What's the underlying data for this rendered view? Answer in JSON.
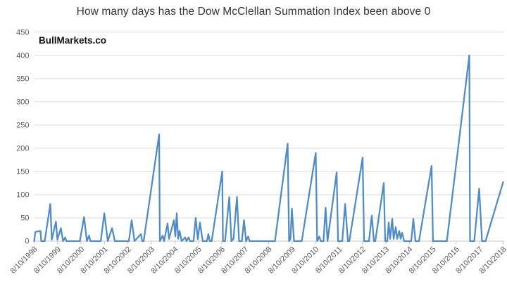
{
  "chart_data": {
    "type": "line",
    "title": "How many days has the Dow McClellan Summation Index been above 0",
    "watermark": "BullMarkets.co",
    "xlabel": "",
    "ylabel": "",
    "ylim": [
      0,
      450
    ],
    "y_ticks": [
      0,
      50,
      100,
      150,
      200,
      250,
      300,
      350,
      400,
      450
    ],
    "x_tick_labels": [
      "8/10/1998",
      "8/10/1999",
      "8/10/2000",
      "8/10/2001",
      "8/10/2002",
      "8/10/2003",
      "8/10/2004",
      "8/10/2005",
      "8/10/2006",
      "8/10/2007",
      "8/10/2008",
      "8/10/2009",
      "8/10/2010",
      "8/10/2011",
      "8/10/2012",
      "8/10/2013",
      "8/10/2014",
      "8/10/2015",
      "8/10/2016",
      "8/10/2017",
      "8/10/2018"
    ],
    "x_range_years_after_start": [
      0,
      20
    ],
    "grid": true,
    "legend": false,
    "colors": {
      "line": "#4e8bc7",
      "grid": "#dadada",
      "axis": "#c8c8c8",
      "tick_label": "#595959",
      "title": "#333333",
      "watermark": "#111111",
      "background": "#ffffff"
    },
    "series": [
      {
        "points": [
          [
            0,
            0
          ],
          [
            0.05,
            20
          ],
          [
            0.27,
            22
          ],
          [
            0.3,
            0
          ],
          [
            0.45,
            0
          ],
          [
            0.69,
            80
          ],
          [
            0.75,
            3
          ],
          [
            0.93,
            42
          ],
          [
            0.99,
            3
          ],
          [
            1.14,
            28
          ],
          [
            1.23,
            0
          ],
          [
            1.32,
            8
          ],
          [
            1.38,
            0
          ],
          [
            1.95,
            0
          ],
          [
            2.13,
            52
          ],
          [
            2.25,
            0
          ],
          [
            2.34,
            12
          ],
          [
            2.4,
            0
          ],
          [
            2.84,
            0
          ],
          [
            2.99,
            60
          ],
          [
            3.14,
            0
          ],
          [
            3.32,
            28
          ],
          [
            3.44,
            0
          ],
          [
            4.04,
            0
          ],
          [
            4.16,
            45
          ],
          [
            4.28,
            0
          ],
          [
            4.55,
            15
          ],
          [
            4.61,
            0
          ],
          [
            4.67,
            0
          ],
          [
            5.33,
            230
          ],
          [
            5.36,
            0
          ],
          [
            5.48,
            12
          ],
          [
            5.54,
            0
          ],
          [
            5.69,
            38
          ],
          [
            5.75,
            5
          ],
          [
            5.96,
            45
          ],
          [
            6.02,
            10
          ],
          [
            6.08,
            60
          ],
          [
            6.14,
            5
          ],
          [
            6.2,
            22
          ],
          [
            6.29,
            0
          ],
          [
            6.44,
            8
          ],
          [
            6.5,
            0
          ],
          [
            6.59,
            8
          ],
          [
            6.65,
            0
          ],
          [
            6.8,
            0
          ],
          [
            6.89,
            50
          ],
          [
            6.98,
            4
          ],
          [
            7.07,
            40
          ],
          [
            7.19,
            0
          ],
          [
            7.37,
            0
          ],
          [
            7.43,
            15
          ],
          [
            7.49,
            0
          ],
          [
            7.57,
            0
          ],
          [
            8.02,
            150
          ],
          [
            8.05,
            0
          ],
          [
            8.14,
            0
          ],
          [
            8.32,
            95
          ],
          [
            8.41,
            0
          ],
          [
            8.5,
            5
          ],
          [
            8.65,
            95
          ],
          [
            8.74,
            0
          ],
          [
            8.86,
            0
          ],
          [
            8.95,
            45
          ],
          [
            9.04,
            0
          ],
          [
            9.13,
            10
          ],
          [
            9.19,
            0
          ],
          [
            10.27,
            0
          ],
          [
            10.81,
            210
          ],
          [
            10.87,
            0
          ],
          [
            10.93,
            5
          ],
          [
            10.99,
            70
          ],
          [
            11.08,
            0
          ],
          [
            11.41,
            0
          ],
          [
            12.01,
            190
          ],
          [
            12.07,
            0
          ],
          [
            12.16,
            10
          ],
          [
            12.22,
            0
          ],
          [
            12.34,
            0
          ],
          [
            12.43,
            72
          ],
          [
            12.51,
            0
          ],
          [
            12.9,
            148
          ],
          [
            12.96,
            0
          ],
          [
            13.14,
            0
          ],
          [
            13.26,
            80
          ],
          [
            13.38,
            0
          ],
          [
            13.44,
            0
          ],
          [
            14.01,
            180
          ],
          [
            14.07,
            0
          ],
          [
            14.28,
            0
          ],
          [
            14.4,
            55
          ],
          [
            14.49,
            0
          ],
          [
            14.55,
            0
          ],
          [
            14.91,
            125
          ],
          [
            14.97,
            0
          ],
          [
            15.06,
            0
          ],
          [
            15.12,
            40
          ],
          [
            15.18,
            5
          ],
          [
            15.27,
            48
          ],
          [
            15.33,
            5
          ],
          [
            15.42,
            30
          ],
          [
            15.48,
            5
          ],
          [
            15.57,
            22
          ],
          [
            15.63,
            5
          ],
          [
            15.69,
            18
          ],
          [
            15.78,
            0
          ],
          [
            16.08,
            0
          ],
          [
            16.17,
            48
          ],
          [
            16.26,
            0
          ],
          [
            16.41,
            0
          ],
          [
            16.95,
            162
          ],
          [
            17.01,
            0
          ],
          [
            17.6,
            0
          ],
          [
            18.56,
            400
          ],
          [
            18.59,
            0
          ],
          [
            18.77,
            0
          ],
          [
            18.98,
            113
          ],
          [
            19.1,
            0
          ],
          [
            19.25,
            0
          ],
          [
            20,
            127
          ]
        ]
      }
    ]
  }
}
